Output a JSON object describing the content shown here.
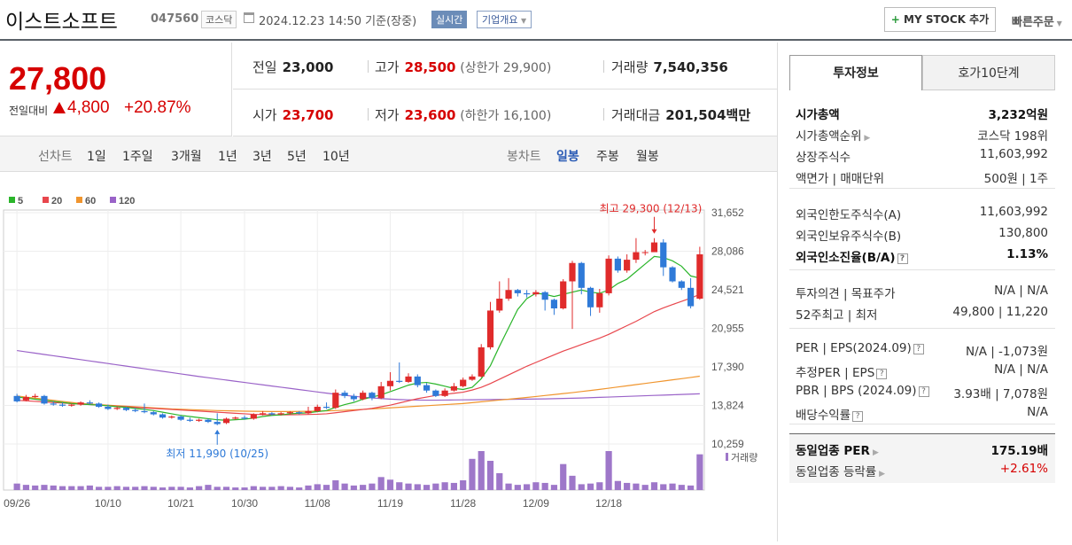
{
  "header": {
    "name": "이스트소프트",
    "code": "047560",
    "market": "코스닥",
    "datetime": "2024.12.23 14:50 기준(장중)",
    "realtime": "실시간",
    "corp_info": "기업개요",
    "mystock": "MY STOCK 추가",
    "quick_order": "빠른주문"
  },
  "price": {
    "current": "27,800",
    "diff_label": "전일대비",
    "diff": "4,800",
    "rate": "+20.87%"
  },
  "summary": {
    "prev_label": "전일",
    "prev": "23,000",
    "high_label": "고가",
    "high": "28,500",
    "upper_limit": "(상한가 29,900)",
    "volume_label": "거래량",
    "volume": "7,540,356",
    "open_label": "시가",
    "open": "23,700",
    "low_label": "저가",
    "low": "23,600",
    "lower_limit": "(하한가 16,100)",
    "amount_label": "거래대금",
    "amount": "201,504",
    "amount_unit": "백만"
  },
  "toolbar": {
    "line_label": "선차트",
    "ranges": [
      "1일",
      "1주일",
      "3개월",
      "1년",
      "3년",
      "5년",
      "10년"
    ],
    "candle_label": "봉차트",
    "periods": [
      "일봉",
      "주봉",
      "월봉"
    ],
    "active_period": "일봉"
  },
  "chart_data": {
    "type": "candlestick",
    "legend": [
      {
        "name": "5",
        "color": "#2ab52a"
      },
      {
        "name": "20",
        "color": "#e8474d"
      },
      {
        "name": "60",
        "color": "#f0952e"
      },
      {
        "name": "120",
        "color": "#9a63c8"
      }
    ],
    "y_ticks": [
      "31,652",
      "28,086",
      "24,521",
      "20,955",
      "17,390",
      "13,824",
      "10,259"
    ],
    "ylim": [
      10259,
      31652
    ],
    "x_ticks": [
      "09/26",
      "10/10",
      "10/21",
      "10/30",
      "11/08",
      "11/19",
      "11/28",
      "12/09",
      "12/18"
    ],
    "volume_label": "거래량",
    "annotations": {
      "high": "최고 29,300 (12/13)",
      "low": "최저 11,990 (10/25)"
    },
    "candles": [
      [
        14700,
        14200,
        14900,
        14100
      ],
      [
        14300,
        14600,
        14800,
        14200
      ],
      [
        14600,
        14700,
        14900,
        14500
      ],
      [
        14700,
        14000,
        14800,
        13900
      ],
      [
        14000,
        13900,
        14200,
        13800
      ],
      [
        13900,
        13800,
        14100,
        13700
      ],
      [
        13800,
        13900,
        14000,
        13700
      ],
      [
        13900,
        14100,
        14200,
        13800
      ],
      [
        14100,
        14000,
        14300,
        13900
      ],
      [
        14000,
        13700,
        14100,
        13600
      ],
      [
        13700,
        13500,
        13900,
        13400
      ],
      [
        13500,
        13600,
        13700,
        13400
      ],
      [
        13600,
        13400,
        13700,
        13300
      ],
      [
        13400,
        13300,
        13600,
        13200
      ],
      [
        13300,
        13200,
        14000,
        13100
      ],
      [
        13200,
        13000,
        13300,
        12900
      ],
      [
        13000,
        12700,
        13100,
        12600
      ],
      [
        12700,
        12800,
        12900,
        12600
      ],
      [
        12800,
        12500,
        12900,
        12400
      ],
      [
        12500,
        12400,
        12700,
        12300
      ],
      [
        12400,
        12500,
        12600,
        12300
      ],
      [
        12500,
        12300,
        12600,
        12200
      ],
      [
        12300,
        12100,
        13100,
        11990
      ],
      [
        12200,
        12600,
        12700,
        12100
      ],
      [
        12600,
        12700,
        12800,
        12500
      ],
      [
        12700,
        12600,
        12900,
        12500
      ],
      [
        12600,
        13000,
        13100,
        12500
      ],
      [
        13000,
        13100,
        13300,
        12900
      ],
      [
        13100,
        13000,
        13200,
        12900
      ],
      [
        13000,
        13100,
        13200,
        12900
      ],
      [
        13100,
        13200,
        13300,
        13000
      ],
      [
        13200,
        13100,
        13300,
        13000
      ],
      [
        13100,
        13300,
        13700,
        13000
      ],
      [
        13300,
        13700,
        13900,
        13200
      ],
      [
        13700,
        13600,
        14100,
        13500
      ],
      [
        13600,
        15000,
        15300,
        13500
      ],
      [
        15000,
        14700,
        15200,
        14500
      ],
      [
        14700,
        14400,
        14900,
        14200
      ],
      [
        14400,
        15000,
        15200,
        14300
      ],
      [
        15000,
        14500,
        15100,
        14300
      ],
      [
        14500,
        15600,
        16000,
        14400
      ],
      [
        15600,
        16100,
        16900,
        15200
      ],
      [
        16100,
        16000,
        17800,
        15900
      ],
      [
        16000,
        16500,
        16800,
        15900
      ],
      [
        16500,
        15700,
        16700,
        15500
      ],
      [
        15700,
        15200,
        15900,
        15000
      ],
      [
        15200,
        14700,
        15300,
        14600
      ],
      [
        14700,
        15200,
        15400,
        14600
      ],
      [
        15200,
        15600,
        15900,
        15100
      ],
      [
        15600,
        16200,
        16400,
        15500
      ],
      [
        16200,
        16500,
        16700,
        16100
      ],
      [
        16500,
        19200,
        19500,
        16400
      ],
      [
        19200,
        22600,
        23400,
        19000
      ],
      [
        22600,
        23700,
        25300,
        22400
      ],
      [
        23700,
        24500,
        25600,
        23500
      ],
      [
        24500,
        24200,
        24600,
        23900
      ],
      [
        24200,
        24100,
        24500,
        23800
      ],
      [
        24100,
        24300,
        24500,
        23900
      ],
      [
        24300,
        23600,
        24400,
        22600
      ],
      [
        23600,
        22800,
        23700,
        22200
      ],
      [
        22800,
        25300,
        25500,
        22700
      ],
      [
        25300,
        27000,
        27200,
        20900
      ],
      [
        27000,
        24700,
        27100,
        24100
      ],
      [
        24700,
        22900,
        24800,
        22100
      ],
      [
        22900,
        24200,
        24600,
        22400
      ],
      [
        24200,
        27400,
        27700,
        24000
      ],
      [
        27400,
        26300,
        27600,
        26100
      ],
      [
        26300,
        27300,
        27800,
        26100
      ],
      [
        27300,
        28000,
        29300,
        27000
      ],
      [
        28000,
        28000,
        28200,
        27700
      ],
      [
        28000,
        28900,
        29300,
        28100
      ],
      [
        28900,
        26600,
        29200,
        25800
      ],
      [
        26600,
        25300,
        26700,
        25200
      ],
      [
        25300,
        24700,
        25400,
        24500
      ],
      [
        24700,
        23000,
        25600,
        22800
      ],
      [
        23700,
        27800,
        28500,
        23600
      ]
    ],
    "ma5": [
      14600,
      14500,
      14400,
      14300,
      14200,
      14100,
      14000,
      13950,
      13900,
      13850,
      13800,
      13700,
      13650,
      13550,
      13450,
      13350,
      13200,
      13050,
      12900,
      12800,
      12700,
      12600,
      12500,
      12450,
      12500,
      12550,
      12650,
      12800,
      12900,
      12950,
      13050,
      13100,
      13150,
      13250,
      13350,
      13650,
      13900,
      14100,
      14400,
      14600,
      14800,
      15100,
      15400,
      15700,
      15900,
      15950,
      15800,
      15600,
      15400,
      15300,
      15500,
      16300,
      17500,
      19300,
      21000,
      22700,
      23700,
      24200,
      24100,
      23900,
      24100,
      24300,
      24500,
      24300,
      24200,
      24500,
      25100,
      25500,
      26200,
      26900,
      27600,
      27500,
      27200,
      26700,
      25800,
      25600
    ],
    "ma20": [
      14300,
      14250,
      14200,
      14150,
      14100,
      14050,
      14000,
      13950,
      13900,
      13850,
      13800,
      13750,
      13700,
      13650,
      13600,
      13550,
      13500,
      13450,
      13400,
      13350,
      13300,
      13250,
      13200,
      13150,
      13100,
      13050,
      13000,
      12980,
      12960,
      12950,
      12960,
      12970,
      12990,
      13010,
      13050,
      13150,
      13250,
      13350,
      13450,
      13550,
      13700,
      13850,
      14050,
      14250,
      14450,
      14600,
      14750,
      14850,
      14950,
      15050,
      15250,
      15500,
      15850,
      16250,
      16650,
      17050,
      17450,
      17800,
      18150,
      18500,
      18850,
      19150,
      19450,
      19750,
      20050,
      20400,
      20800,
      21200,
      21600,
      22050,
      22500,
      22850,
      23150,
      23450,
      23750,
      24100
    ],
    "ma60": [
      14700,
      14600,
      14500,
      14400,
      14300,
      14200,
      14100,
      14000,
      13950,
      13900,
      13850,
      13800,
      13750,
      13700,
      13650,
      13600,
      13550,
      13500,
      13470,
      13440,
      13410,
      13380,
      13350,
      13330,
      13310,
      13290,
      13280,
      13270,
      13260,
      13260,
      13260,
      13270,
      13280,
      13300,
      13320,
      13350,
      13380,
      13420,
      13460,
      13500,
      13550,
      13600,
      13650,
      13700,
      13750,
      13800,
      13850,
      13900,
      13950,
      14000,
      14080,
      14160,
      14240,
      14320,
      14400,
      14480,
      14560,
      14650,
      14740,
      14830,
      14920,
      15010,
      15110,
      15210,
      15310,
      15420,
      15530,
      15640,
      15750,
      15860,
      15970,
      16080,
      16190,
      16300,
      16410,
      16530
    ],
    "ma120": [
      18900,
      18780,
      18660,
      18540,
      18420,
      18300,
      18180,
      18060,
      17940,
      17820,
      17700,
      17580,
      17460,
      17340,
      17220,
      17100,
      16980,
      16860,
      16740,
      16620,
      16500,
      16390,
      16280,
      16170,
      16060,
      15950,
      15840,
      15730,
      15620,
      15510,
      15400,
      15290,
      15180,
      15070,
      14960,
      14860,
      14760,
      14670,
      14590,
      14520,
      14460,
      14410,
      14370,
      14340,
      14320,
      14310,
      14310,
      14320,
      14330,
      14340,
      14350,
      14360,
      14370,
      14380,
      14390,
      14400,
      14410,
      14420,
      14430,
      14450,
      14470,
      14490,
      14510,
      14540,
      14570,
      14600,
      14630,
      14660,
      14690,
      14720,
      14750,
      14780,
      14810,
      14840,
      14870,
      14900
    ],
    "volume": [
      10,
      8,
      7,
      8,
      7,
      6,
      6,
      6,
      7,
      5,
      5,
      6,
      5,
      5,
      6,
      5,
      4,
      5,
      5,
      4,
      6,
      8,
      5,
      5,
      4,
      4,
      6,
      5,
      5,
      6,
      5,
      4,
      7,
      9,
      8,
      15,
      10,
      7,
      8,
      10,
      20,
      16,
      12,
      10,
      9,
      8,
      10,
      12,
      11,
      15,
      48,
      60,
      45,
      26,
      10,
      8,
      9,
      12,
      11,
      8,
      40,
      22,
      9,
      10,
      12,
      60,
      14,
      11,
      10,
      8,
      12,
      9,
      10,
      8,
      7,
      55
    ]
  },
  "tabs": [
    "투자정보",
    "호가10단계"
  ],
  "info": {
    "s1": [
      {
        "k": "시가총액",
        "v": "3,232억원",
        "bold": true
      },
      {
        "k": "시가총액순위",
        "v": "코스닥 198위",
        "arrow": true
      },
      {
        "k": "상장주식수",
        "v": "11,603,992"
      },
      {
        "k": "액면가 | 매매단위",
        "v": "500원 | 1주"
      }
    ],
    "s2": [
      {
        "k": "외국인한도주식수(A)",
        "v": "11,603,992"
      },
      {
        "k": "외국인보유주식수(B)",
        "v": "130,800"
      },
      {
        "k": "외국인소진율(B/A)",
        "v": "1.13%",
        "bold": true,
        "help": true
      }
    ],
    "s3": [
      {
        "k": "투자의견 | 목표주가",
        "v": "N/A | N/A"
      },
      {
        "k": "52주최고 | 최저",
        "v": "49,800 | 11,220"
      }
    ],
    "s4": [
      {
        "k": "PER | EPS(2024.09)",
        "v": "N/A | -1,073원",
        "help": true
      },
      {
        "k": "추정PER | EPS",
        "v": "N/A | N/A",
        "help": true
      },
      {
        "k": "PBR | BPS (2024.09)",
        "v": "3.93배 | 7,078원",
        "help": true
      },
      {
        "k": "배당수익률",
        "v": "N/A",
        "help": true
      }
    ],
    "s5": [
      {
        "k": "동일업종 PER",
        "v": "175.19배",
        "bold": true,
        "arrow": true
      },
      {
        "k": "동일업종 등락률",
        "v": "+2.61%",
        "arrow": true,
        "red": true
      }
    ]
  }
}
